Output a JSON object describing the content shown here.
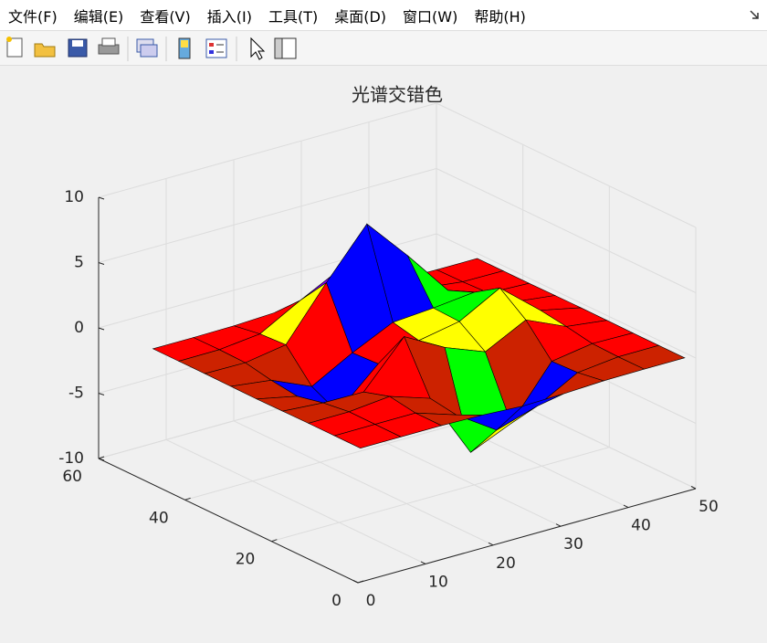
{
  "menu": [
    "文件(F)",
    "编辑(E)",
    "查看(V)",
    "插入(I)",
    "工具(T)",
    "桌面(D)",
    "窗口(W)",
    "帮助(H)"
  ],
  "chart_data": {
    "type": "surface",
    "title": "光谱交错色",
    "x": [
      1,
      7,
      13,
      19,
      25,
      31,
      37,
      43,
      49
    ],
    "y": [
      1,
      7,
      13,
      19,
      25,
      31,
      37,
      43,
      49
    ],
    "z": [
      [
        0,
        0,
        0,
        -0.07,
        -0.24,
        -0.17,
        -0.03,
        0,
        0
      ],
      [
        0,
        0.01,
        0.01,
        -0.99,
        -3.02,
        -2.05,
        -0.35,
        -0.01,
        0
      ],
      [
        0,
        0.02,
        0.33,
        -0.68,
        -5.68,
        -4.32,
        -0.44,
        0.05,
        0
      ],
      [
        -0.02,
        -0.25,
        -0.28,
        3.09,
        1.4,
        0.2,
        1.78,
        0.41,
        0.02
      ],
      [
        -0.04,
        -0.69,
        -2.77,
        0.06,
        0.98,
        1.57,
        3.27,
        0.7,
        0.03
      ],
      [
        -0.02,
        -0.42,
        -1.76,
        -0.05,
        1.42,
        1.65,
        1.99,
        0.4,
        0.02
      ],
      [
        0,
        -0.03,
        0.48,
        4.37,
        8,
        4.72,
        1.19,
        0.12,
        0
      ],
      [
        0,
        0.02,
        0.36,
        2.07,
        3.65,
        2.09,
        0.41,
        0.03,
        0
      ],
      [
        0,
        0,
        0.03,
        0.17,
        0.3,
        0.17,
        0.03,
        0,
        0
      ]
    ],
    "colormap": [
      "#ff0000",
      "#ffff00",
      "#00ff00",
      "#0000ff",
      "#8000ff",
      "#ff0000",
      "#ffff00",
      "#00ff00",
      "#0000ff",
      "#cc2200",
      "#ff0000",
      "#ffff00",
      "#00ff00",
      "#0000ff",
      "#8000ff",
      "#ff0000",
      "#ffff00",
      "#00ff00",
      "#0000ff",
      "#8000ff"
    ],
    "edge_color": "#000000",
    "xlim": [
      0,
      50
    ],
    "xticks": [
      0,
      10,
      20,
      30,
      40,
      50
    ],
    "ylim": [
      0,
      60
    ],
    "yticks": [
      0,
      20,
      40,
      60
    ],
    "zlim": [
      -10,
      10
    ],
    "zticks": [
      -10,
      -5,
      0,
      5,
      10
    ],
    "grid": true
  }
}
